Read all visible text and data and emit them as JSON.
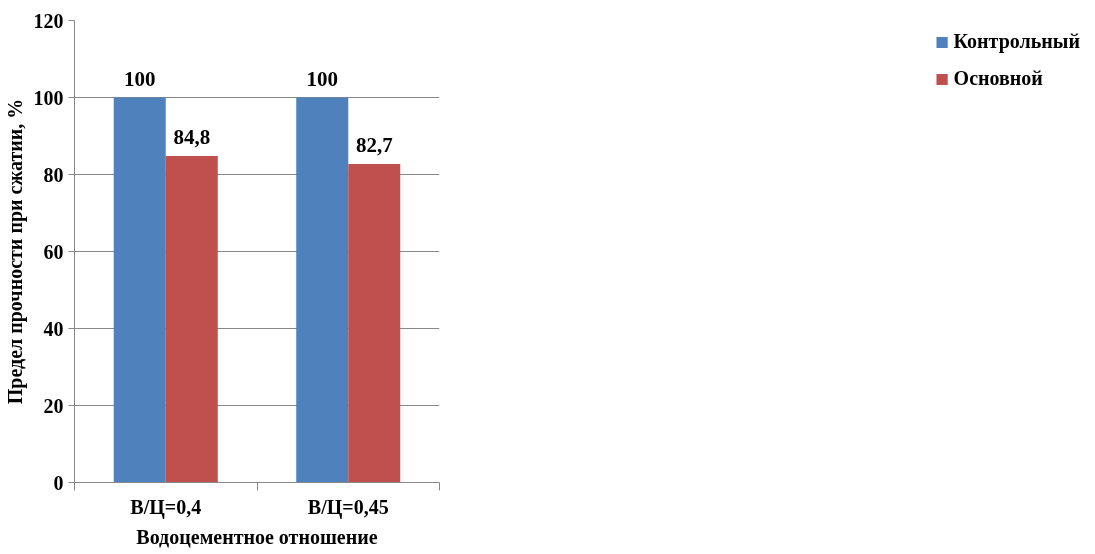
{
  "chart_data": {
    "type": "bar",
    "xlabel": "Водоцементное отношение",
    "ylabel": "Предел прочности при сжатии, %",
    "categories": [
      "В/Ц=0,4",
      "В/Ц=0,45"
    ],
    "series": [
      {
        "name": "Контрольный",
        "color": "#4f81bd",
        "values": [
          100,
          100
        ],
        "value_labels": [
          "100",
          "100"
        ]
      },
      {
        "name": "Основной",
        "color": "#c0504d",
        "values": [
          84.8,
          82.7
        ],
        "value_labels": [
          "84,8",
          "82,7"
        ]
      }
    ],
    "ylim": [
      0,
      120
    ],
    "yticks": [
      0,
      20,
      40,
      60,
      80,
      100,
      120
    ],
    "grid": "y",
    "legend": "right"
  }
}
